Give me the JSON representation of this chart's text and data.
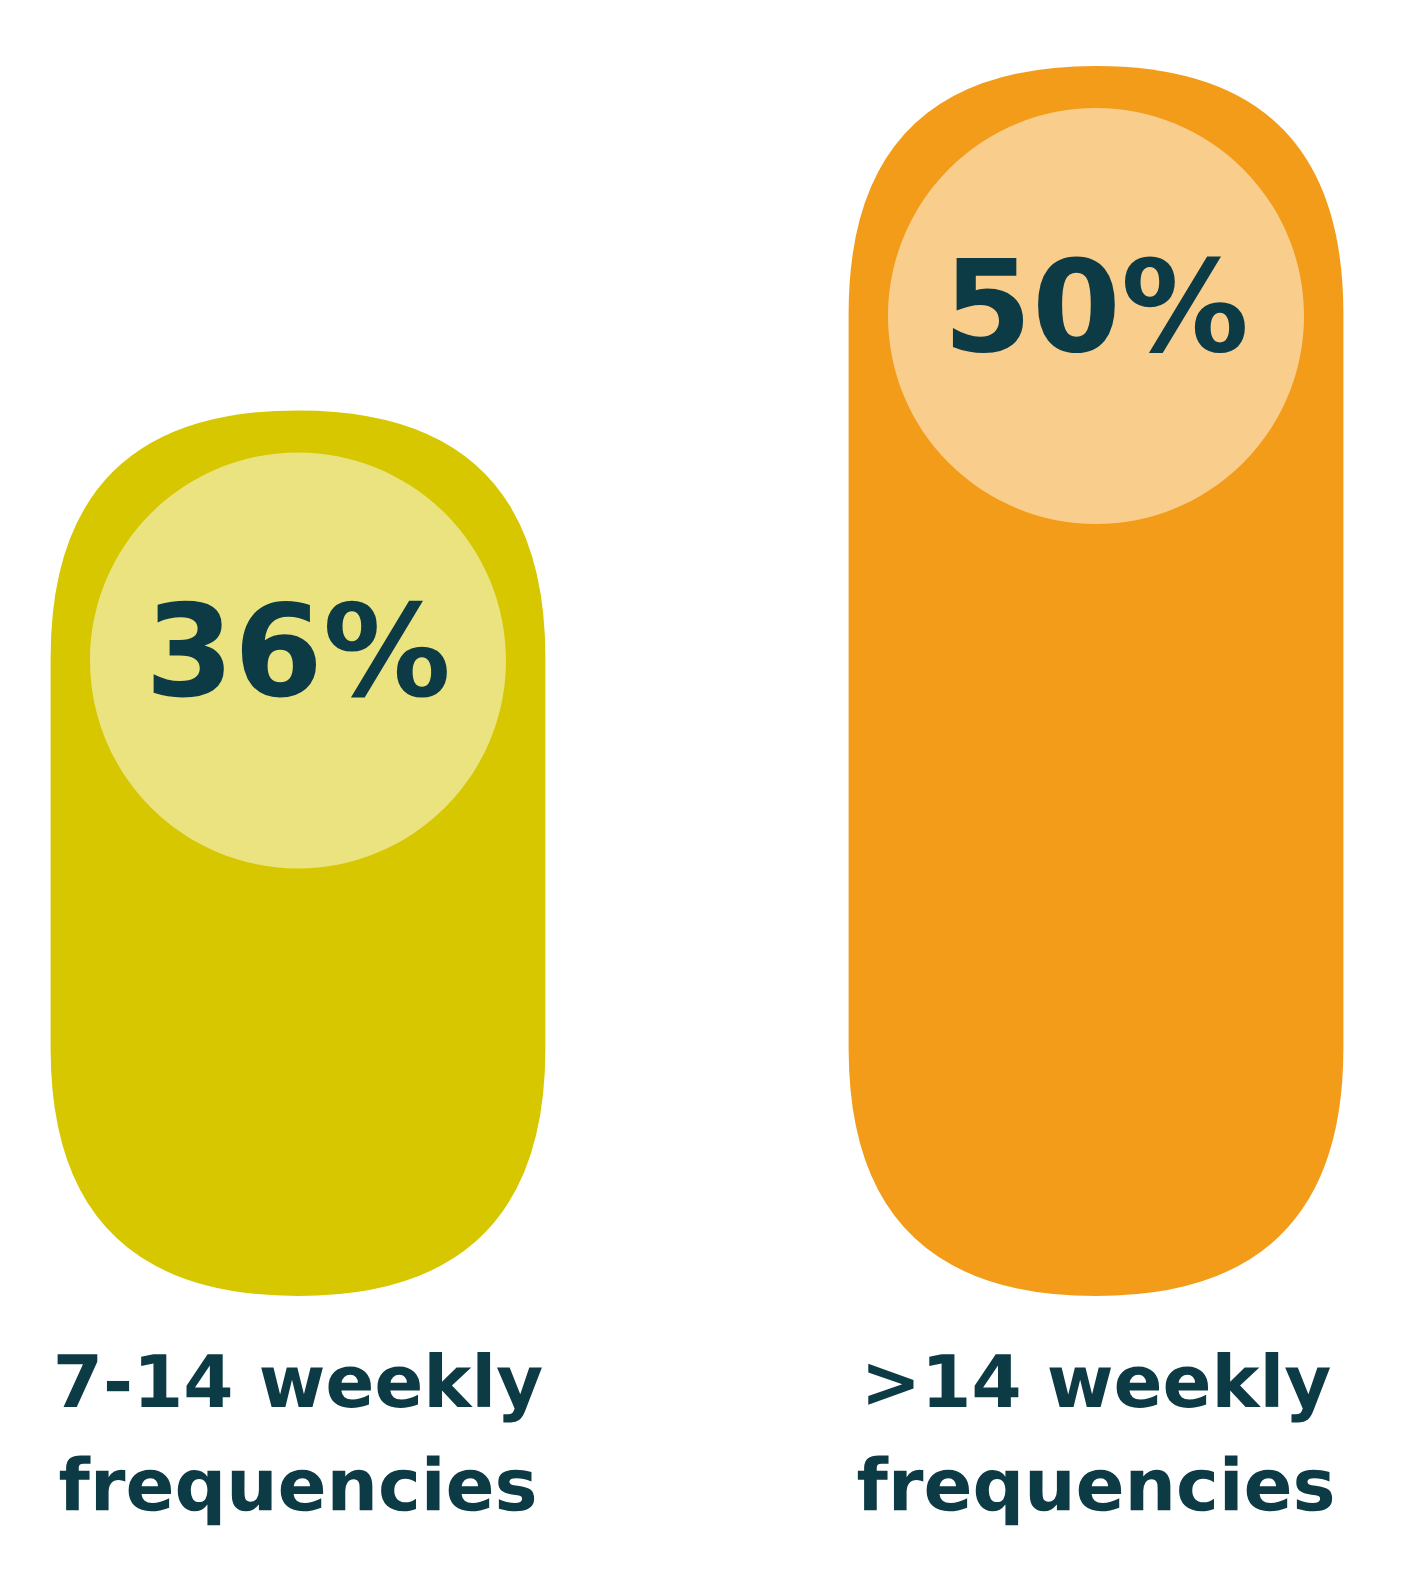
{
  "chart_data": {
    "type": "bar",
    "categories": [
      "7-14 weekly\nfrequencies",
      ">14 weekly\nfrequencies"
    ],
    "values": [
      36,
      50
    ],
    "value_labels": [
      "36%",
      "50%"
    ],
    "colors": [
      "#d6c700",
      "#f39c1a"
    ]
  }
}
